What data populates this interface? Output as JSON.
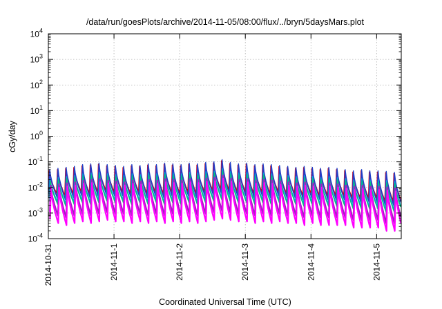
{
  "chart_data": {
    "type": "line",
    "title": "/data/run/goesPlots/archive/2014-11-05/08:00/flux/../bryn/5daysMars.plot",
    "xlabel": "Coordinated Universal Time (UTC)",
    "ylabel": "cGy/day",
    "y_scale": "log",
    "ylim": [
      0.0001,
      10000
    ],
    "xlim": [
      "2014-10-31T00:00",
      "2014-11-05T09:00"
    ],
    "grid": true,
    "legend": "none",
    "y_ticks": [
      {
        "base": "10",
        "exp": "-4",
        "value": 0.0001
      },
      {
        "base": "10",
        "exp": "-3",
        "value": 0.001
      },
      {
        "base": "10",
        "exp": "-2",
        "value": 0.01
      },
      {
        "base": "10",
        "exp": "-1",
        "value": 0.1
      },
      {
        "base": "10",
        "exp": "0",
        "value": 1
      },
      {
        "base": "10",
        "exp": "1",
        "value": 10
      },
      {
        "base": "10",
        "exp": "2",
        "value": 100
      },
      {
        "base": "10",
        "exp": "3",
        "value": 1000
      },
      {
        "base": "10",
        "exp": "4",
        "value": 10000
      }
    ],
    "x_ticks": [
      {
        "label": "2014-10-31",
        "value": "2014-10-31T00:00"
      },
      {
        "label": "2014-11-1",
        "value": "2014-11-01T00:00"
      },
      {
        "label": "2014-11-2",
        "value": "2014-11-02T00:00"
      },
      {
        "label": "2014-11-3",
        "value": "2014-11-03T00:00"
      },
      {
        "label": "2014-11-4",
        "value": "2014-11-04T00:00"
      },
      {
        "label": "2014-11-5",
        "value": "2014-11-05T00:00"
      }
    ],
    "cycle_period_hours": 3,
    "series": [
      {
        "color": "#dd0000",
        "values": [
          0.045,
          0.006
        ]
      },
      {
        "color": "#7a1fa0",
        "values": [
          0.04,
          0.0045
        ]
      },
      {
        "color": "#1f3fc8",
        "values": [
          0.05,
          0.004
        ]
      },
      {
        "color": "#00a6d8",
        "values": [
          0.022,
          0.0028
        ]
      },
      {
        "color": "#00c87a",
        "values": [
          0.018,
          0.0022
        ]
      },
      {
        "color": "#a020c0",
        "values": [
          0.012,
          0.0008
        ]
      },
      {
        "color": "#ff00ff",
        "values": [
          0.009,
          0.0004
        ]
      }
    ],
    "peak_values": [
      0.045,
      0.05,
      0.055,
      0.06,
      0.07,
      0.075,
      0.08,
      0.07,
      0.065,
      0.06,
      0.07,
      0.065,
      0.075,
      0.07,
      0.08,
      0.075,
      0.07,
      0.08,
      0.075,
      0.085,
      0.09,
      0.11,
      0.085,
      0.075,
      0.08,
      0.07,
      0.075,
      0.07,
      0.065,
      0.06,
      0.055,
      0.06,
      0.055,
      0.05,
      0.055,
      0.05,
      0.045,
      0.04,
      0.045,
      0.04,
      0.04,
      0.038,
      0.035
    ],
    "trough_values": [
      0.006,
      0.005,
      0.006,
      0.007,
      0.006,
      0.007,
      0.008,
      0.007,
      0.007,
      0.006,
      0.007,
      0.006,
      0.007,
      0.006,
      0.007,
      0.006,
      0.007,
      0.006,
      0.007,
      0.008,
      0.009,
      0.008,
      0.007,
      0.007,
      0.006,
      0.007,
      0.006,
      0.007,
      0.006,
      0.006,
      0.005,
      0.006,
      0.005,
      0.005,
      0.005,
      0.005,
      0.004,
      0.004,
      0.004,
      0.004,
      0.003,
      0.003,
      0.003
    ]
  }
}
